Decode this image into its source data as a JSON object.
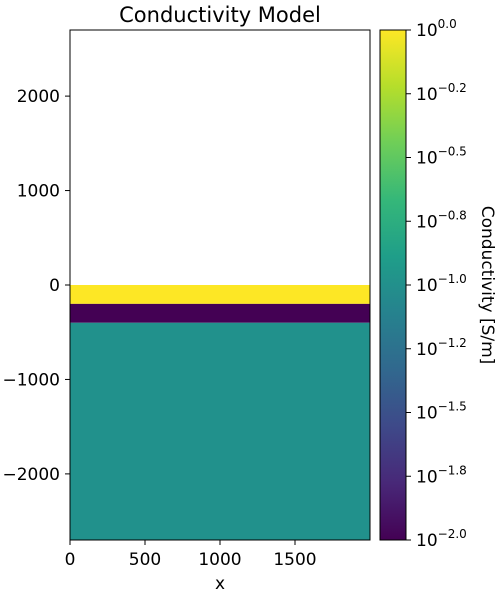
{
  "chart_data": {
    "type": "heatmap",
    "title": "Conductivity Model",
    "xlabel": "x",
    "ylabel": "",
    "xlim": [
      0,
      2000
    ],
    "ylim": [
      -2700,
      2700
    ],
    "x_ticks": [
      {
        "value": 0,
        "label": "0"
      },
      {
        "value": 500,
        "label": "500"
      },
      {
        "value": 1000,
        "label": "1000"
      },
      {
        "value": 1500,
        "label": "1500"
      }
    ],
    "y_ticks": [
      {
        "value": 2000,
        "label": "2000"
      },
      {
        "value": 1000,
        "label": "1000"
      },
      {
        "value": 0,
        "label": "0"
      },
      {
        "value": -1000,
        "label": "−1000"
      },
      {
        "value": -2000,
        "label": "−2000"
      }
    ],
    "layers": [
      {
        "top": 2700,
        "bottom": 0,
        "value": null,
        "color": "#ffffff"
      },
      {
        "top": 0,
        "bottom": -200,
        "value": 1.0,
        "color": "#fde725"
      },
      {
        "top": -200,
        "bottom": -400,
        "value": 0.01,
        "color": "#440154"
      },
      {
        "top": -400,
        "bottom": -2700,
        "value": 0.1,
        "color": "#21918c"
      }
    ],
    "colorbar": {
      "label": "Conductivity [S/m]",
      "scale": "log",
      "range_exp": [
        -2.0,
        0.0
      ],
      "colormap": "viridis",
      "ticks": [
        {
          "exp": 0.0,
          "base": "10",
          "sup": "0.0"
        },
        {
          "exp": -0.25,
          "base": "10",
          "sup": "−0.2"
        },
        {
          "exp": -0.5,
          "base": "10",
          "sup": "−0.5"
        },
        {
          "exp": -0.75,
          "base": "10",
          "sup": "−0.8"
        },
        {
          "exp": -1.0,
          "base": "10",
          "sup": "−1.0"
        },
        {
          "exp": -1.25,
          "base": "10",
          "sup": "−1.2"
        },
        {
          "exp": -1.5,
          "base": "10",
          "sup": "−1.5"
        },
        {
          "exp": -1.75,
          "base": "10",
          "sup": "−1.8"
        },
        {
          "exp": -2.0,
          "base": "10",
          "sup": "−2.0"
        }
      ],
      "gradient_colors": [
        "#440154",
        "#482878",
        "#3e4989",
        "#31688e",
        "#26828e",
        "#1f9e89",
        "#35b779",
        "#6ece58",
        "#b5de2b",
        "#fde725"
      ]
    }
  }
}
